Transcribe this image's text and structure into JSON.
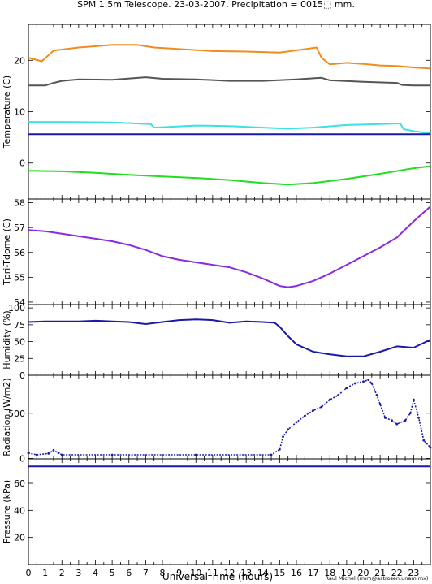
{
  "figure": {
    "title": "SPM 1.5m Telescope. 23-03-2007. Precipitation = 0015⬚ mm.",
    "xlabel": "Universal Time (hours)",
    "credit": "Raul Michel (rmm@astrosen.unam.mx)"
  },
  "chart_data": [
    {
      "type": "line",
      "ylabel": "Temperature (C)",
      "xlim": [
        0,
        24
      ],
      "ylim": [
        -7,
        27
      ],
      "yticks": [
        0,
        10,
        20
      ],
      "grid": false,
      "series": [
        {
          "color": "#f08c1e",
          "x": [
            0,
            0.8,
            1.5,
            3,
            5,
            6.5,
            7.5,
            9,
            11,
            13,
            15,
            17.2,
            17.5,
            18,
            19,
            20,
            21,
            22,
            23,
            24
          ],
          "y": [
            20.5,
            19.8,
            21.9,
            22.5,
            23,
            23,
            22.5,
            22.2,
            21.8,
            21.7,
            21.5,
            22.5,
            20.5,
            19.2,
            19.5,
            19.3,
            19,
            18.9,
            18.6,
            18.4
          ]
        },
        {
          "color": "#555555",
          "x": [
            0,
            1,
            1.5,
            2,
            3,
            5,
            7,
            8,
            10,
            12,
            14,
            16,
            17,
            17.5,
            18,
            20,
            22,
            22.3,
            23,
            24
          ],
          "y": [
            15.1,
            15.1,
            15.6,
            16,
            16.3,
            16.2,
            16.7,
            16.4,
            16.3,
            16,
            16,
            16.3,
            16.5,
            16.6,
            16.1,
            15.8,
            15.6,
            15.2,
            15.1,
            15.1
          ]
        },
        {
          "color": "#3ce0e8",
          "x": [
            0,
            2,
            5,
            7.3,
            7.5,
            10,
            12,
            14,
            15.5,
            17,
            19,
            21,
            22.2,
            22.4,
            23,
            24
          ],
          "y": [
            8,
            8,
            7.9,
            7.6,
            6.9,
            7.3,
            7.2,
            6.9,
            6.7,
            6.9,
            7.4,
            7.6,
            7.7,
            6.6,
            6.2,
            5.8
          ]
        },
        {
          "color": "#1a1aa8",
          "x": [
            0,
            24
          ],
          "y": [
            5.6,
            5.6
          ]
        },
        {
          "color": "#22dd22",
          "x": [
            0,
            2,
            4,
            6,
            8,
            10,
            12,
            14,
            15.5,
            17,
            19,
            21,
            23,
            24
          ],
          "y": [
            -1.5,
            -1.6,
            -1.9,
            -2.3,
            -2.6,
            -2.9,
            -3.3,
            -3.9,
            -4.2,
            -3.9,
            -3.1,
            -2.1,
            -1,
            -0.6
          ]
        }
      ]
    },
    {
      "type": "line",
      "ylabel": "Tpri-Tdome (C)",
      "xlim": [
        0,
        24
      ],
      "ylim": [
        53.9,
        58.15
      ],
      "yticks": [
        54,
        55,
        56,
        57,
        58
      ],
      "grid": false,
      "series": [
        {
          "color": "#8a2be2",
          "x": [
            0,
            1,
            2,
            3,
            4,
            5,
            6,
            7,
            8,
            9,
            10,
            11,
            12,
            13,
            14,
            15,
            15.5,
            16,
            17,
            18,
            19,
            20,
            21,
            22,
            23,
            24
          ],
          "y": [
            56.9,
            56.85,
            56.75,
            56.65,
            56.55,
            56.45,
            56.3,
            56.1,
            55.85,
            55.7,
            55.6,
            55.5,
            55.4,
            55.2,
            54.95,
            54.65,
            54.6,
            54.65,
            54.85,
            55.15,
            55.5,
            55.85,
            56.2,
            56.6,
            57.25,
            57.85
          ]
        }
      ]
    },
    {
      "type": "line",
      "ylabel": "Humidity (%)",
      "xlim": [
        0,
        24
      ],
      "ylim": [
        0,
        105
      ],
      "yticks": [
        0,
        25,
        50,
        75,
        100
      ],
      "grid": false,
      "series": [
        {
          "color": "#1a1aa8",
          "x": [
            0,
            1,
            2,
            3,
            4,
            5,
            6,
            7,
            8,
            9,
            10,
            11,
            12,
            13,
            14,
            14.7,
            15,
            15.5,
            16,
            17,
            18,
            19,
            20,
            21,
            22,
            23,
            23.5,
            24
          ],
          "y": [
            79,
            80,
            80,
            80,
            81,
            80,
            79,
            76,
            79,
            82,
            83,
            82,
            78,
            80,
            79,
            78,
            72,
            58,
            46,
            35,
            31,
            28,
            28,
            35,
            43,
            41,
            47,
            53
          ]
        }
      ]
    },
    {
      "type": "scatter",
      "ylabel": "Radiation (W/m2)",
      "xlim": [
        0,
        24
      ],
      "ylim": [
        -5,
        920
      ],
      "yticks": [
        0,
        500
      ],
      "grid": false,
      "series": [
        {
          "color": "#1a1aa8",
          "x": [
            0,
            0.5,
            1.2,
            1.5,
            1.8,
            2,
            5,
            10,
            14.5,
            15,
            15.2,
            15.5,
            16,
            16.5,
            17,
            17.5,
            18,
            18.5,
            19,
            19.5,
            20,
            20.3,
            20.5,
            20.8,
            21,
            21.3,
            21.7,
            22,
            22.5,
            22.8,
            23,
            23.3,
            23.6,
            24
          ],
          "y": [
            60,
            40,
            55,
            90,
            60,
            40,
            40,
            40,
            40,
            100,
            240,
            320,
            400,
            470,
            530,
            570,
            650,
            700,
            780,
            830,
            850,
            870,
            830,
            700,
            600,
            450,
            420,
            380,
            420,
            500,
            650,
            450,
            200,
            120
          ]
        }
      ]
    },
    {
      "type": "line",
      "ylabel": "Pressure (kPa)",
      "xlim": [
        0,
        24
      ],
      "ylim": [
        0,
        78
      ],
      "yticks": [
        20,
        40,
        60
      ],
      "grid": false,
      "series": [
        {
          "color": "#1a1aa8",
          "x": [
            0,
            24
          ],
          "y": [
            72.4,
            72.4
          ]
        }
      ]
    }
  ]
}
